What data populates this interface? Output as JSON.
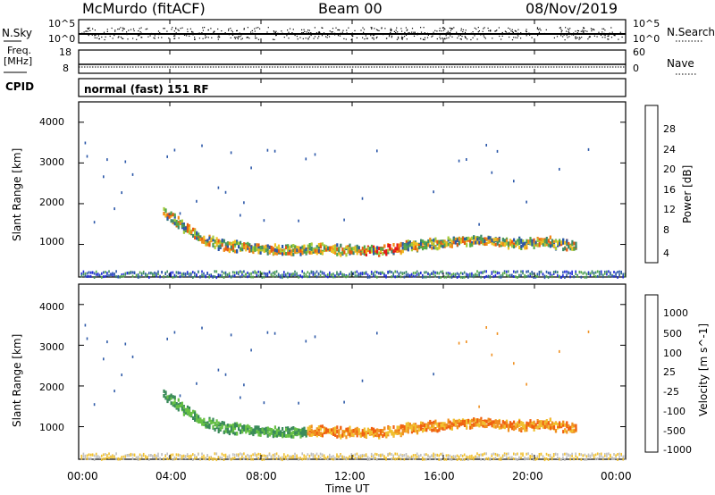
{
  "header": {
    "station": "McMurdo (fitACF)",
    "beam": "Beam 00",
    "date": "08/Nov/2019"
  },
  "noise_panel": {
    "left_label": "N.Sky",
    "right_label": "N.Search",
    "left_ticks": [
      "10^5",
      "10^0"
    ],
    "right_ticks": [
      "10^5",
      "10^0"
    ]
  },
  "freq_panel": {
    "left_label_line1": "Freq.",
    "left_label_line2": "[MHz]",
    "left_ticks": [
      "18",
      "8"
    ],
    "right_label": "Nave",
    "right_ticks": [
      "60",
      "0"
    ]
  },
  "cpid": {
    "label": "CPID",
    "value": "normal (fast) 151 RF"
  },
  "x_axis": {
    "title": "Time UT",
    "ticks": [
      "00:00",
      "04:00",
      "08:00",
      "12:00",
      "16:00",
      "20:00",
      "00:00"
    ]
  },
  "power_panel": {
    "ylabel": "Slant Range [km]",
    "yticks": [
      "1000",
      "2000",
      "3000",
      "4000"
    ],
    "colorbar_label": "Power [dB]",
    "colorbar_ticks": [
      "4",
      "8",
      "12",
      "16",
      "20",
      "24",
      "28"
    ],
    "colors": [
      "#1f2bd8",
      "#2a56a8",
      "#3c8a6a",
      "#55a848",
      "#a6cc3c",
      "#f0c020",
      "#f08c18",
      "#e85a10",
      "#e81818"
    ]
  },
  "velocity_panel": {
    "ylabel": "Slant Range [km]",
    "yticks": [
      "1000",
      "2000",
      "3000",
      "4000"
    ],
    "colorbar_label": "Velocity [m s^-1]",
    "colorbar_ticks": [
      "1000",
      "500",
      "100",
      "25",
      "-25",
      "-100",
      "-500",
      "-1000"
    ],
    "colors": [
      "#1f2bd8",
      "#2e5aa8",
      "#3a8a5a",
      "#66c044",
      "#c0c0c0",
      "#f0c030",
      "#f09020",
      "#f06010",
      "#e81818"
    ]
  },
  "chart_data": {
    "type": "heatmap",
    "x": [
      "00:00",
      "04:00",
      "08:00",
      "12:00",
      "16:00",
      "20:00",
      "00:00"
    ],
    "ylim": [
      200,
      4500
    ],
    "main_band_range_km": [
      [
        3.7,
        1850
      ],
      [
        4.5,
        1500
      ],
      [
        5.5,
        1150
      ],
      [
        6.5,
        1000
      ],
      [
        7.5,
        950
      ],
      [
        8.5,
        900
      ],
      [
        9.5,
        900
      ],
      [
        10.5,
        950
      ],
      [
        11.5,
        900
      ],
      [
        12.5,
        900
      ],
      [
        13.5,
        900
      ],
      [
        14.5,
        1000
      ],
      [
        15.5,
        1050
      ],
      [
        16.5,
        1100
      ],
      [
        17.5,
        1150
      ],
      [
        18.5,
        1100
      ],
      [
        19.5,
        1050
      ],
      [
        20.5,
        1100
      ],
      [
        21.5,
        1000
      ]
    ]
  }
}
